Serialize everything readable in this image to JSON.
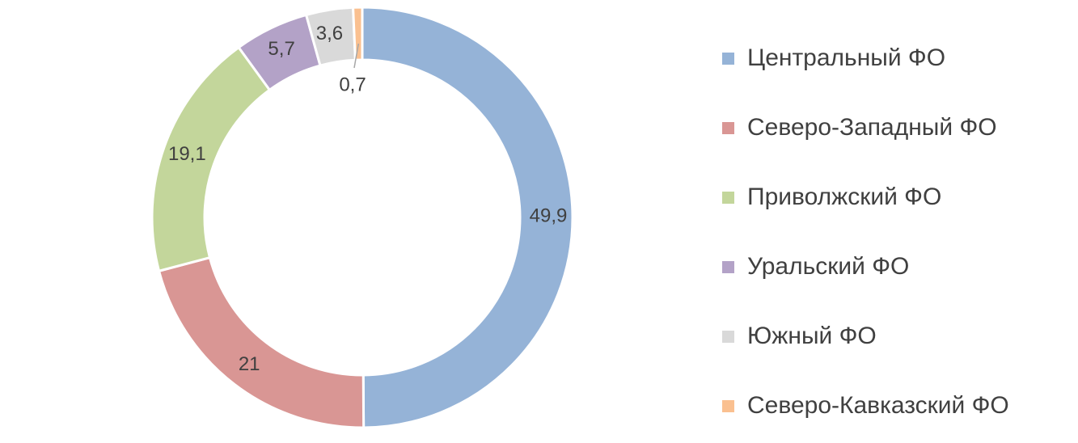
{
  "chart_data": {
    "type": "pie",
    "donut": true,
    "categories": [
      "Центральный ФО",
      "Северо-Западный ФО",
      "Приволжский ФО",
      "Уральский ФО",
      "Южный ФО",
      "Северо-Кавказский ФО"
    ],
    "values": [
      49.9,
      21,
      19.1,
      5.7,
      3.6,
      0.7
    ],
    "value_labels": [
      "49,9",
      "21",
      "19,1",
      "5,7",
      "3,6",
      "0,7"
    ],
    "colors": [
      "#95b3d7",
      "#d99694",
      "#c3d69b",
      "#b3a2c7",
      "#d9d9d9",
      "#fac090"
    ],
    "title": "",
    "legend_position": "right"
  }
}
